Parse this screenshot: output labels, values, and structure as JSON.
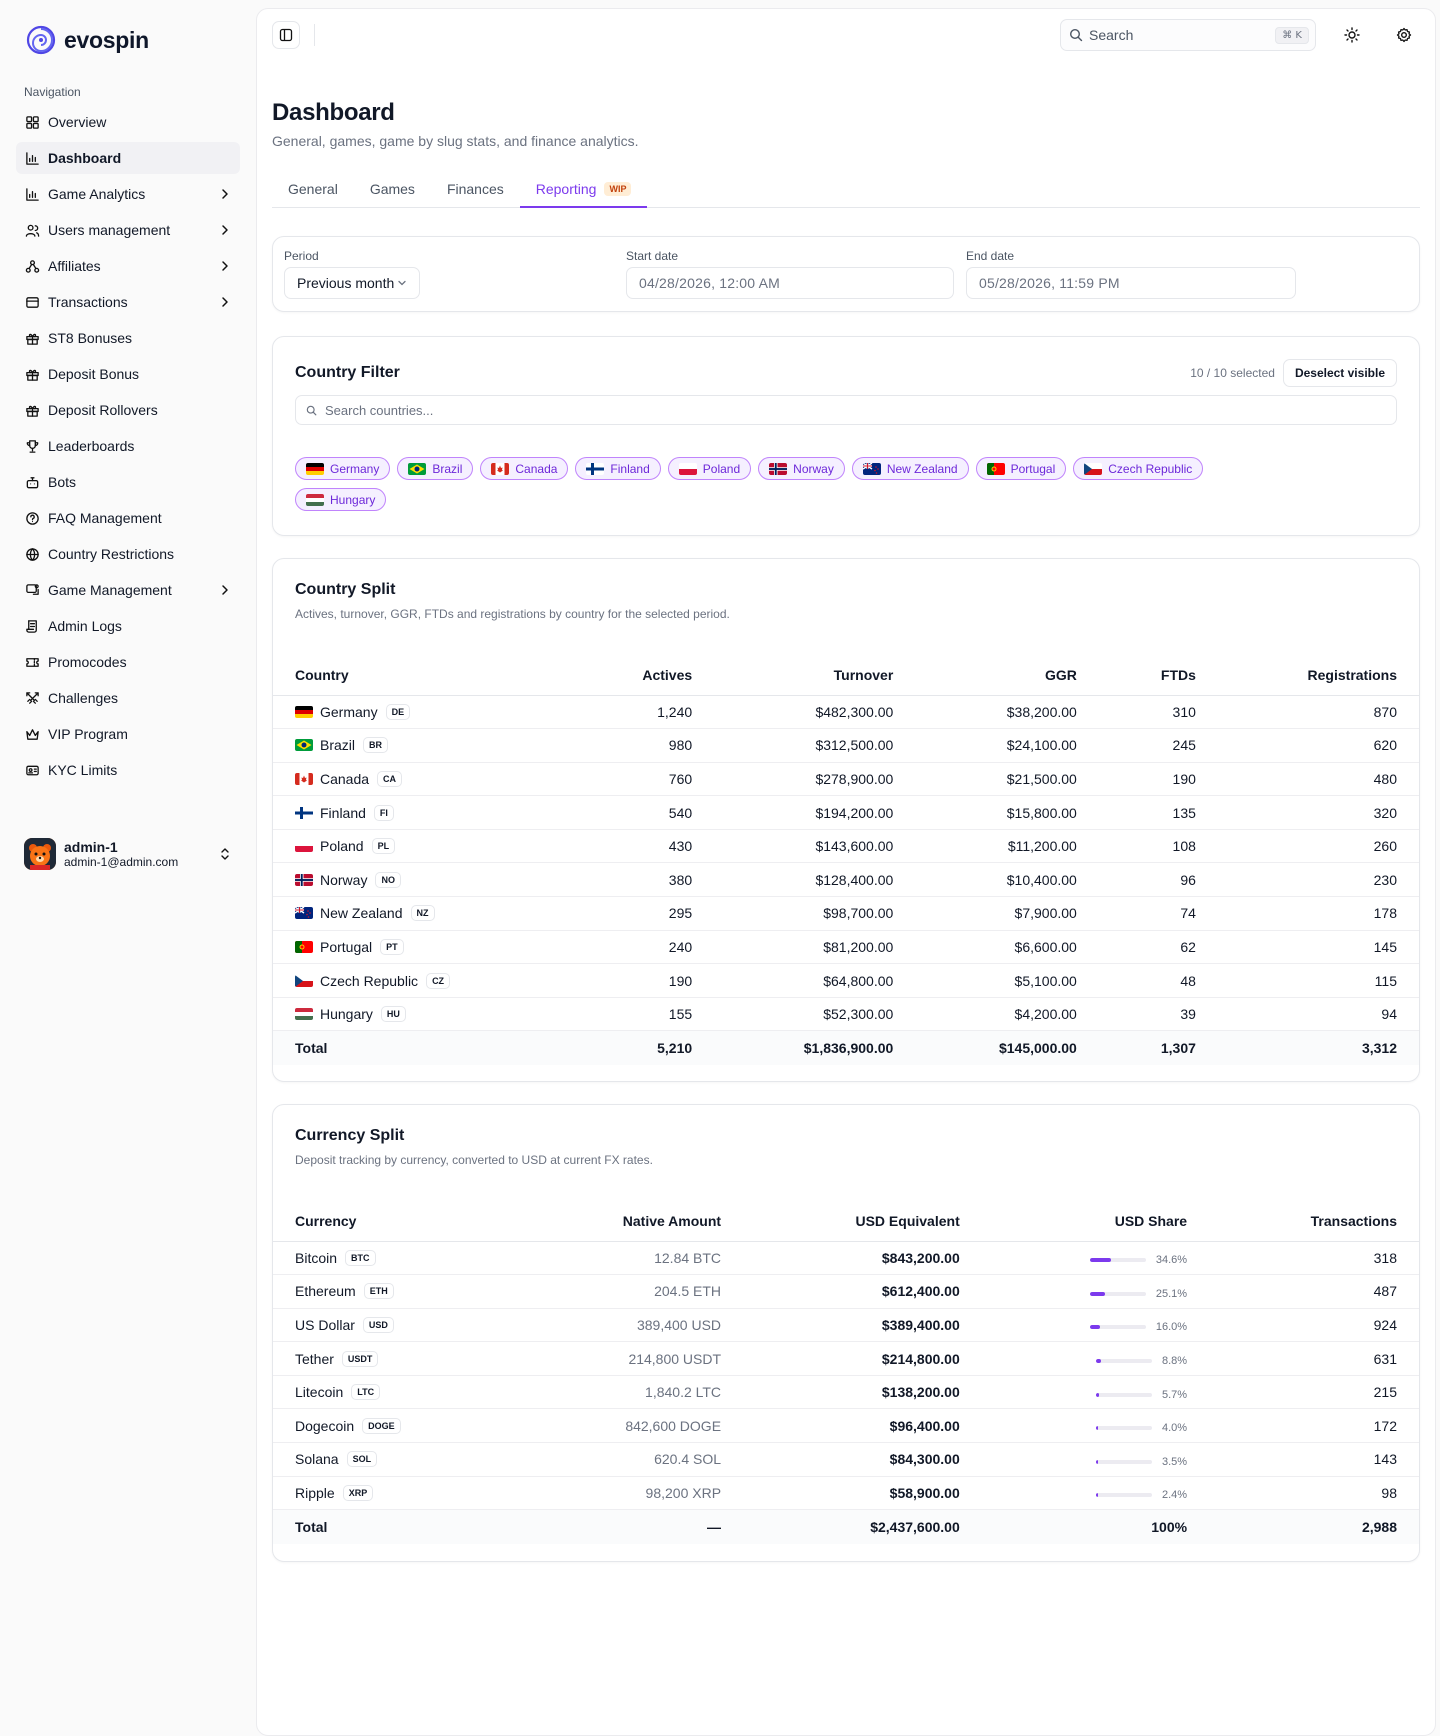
{
  "brand": {
    "name": "evospin"
  },
  "sidebar": {
    "heading": "Navigation",
    "items": [
      {
        "label": "Overview",
        "icon": "grid-icon",
        "chevron": false,
        "active": false
      },
      {
        "label": "Dashboard",
        "icon": "bar-chart-icon",
        "chevron": false,
        "active": true
      },
      {
        "label": "Game Analytics",
        "icon": "bar-chart-icon",
        "chevron": true,
        "active": false
      },
      {
        "label": "Users management",
        "icon": "users-icon",
        "chevron": true,
        "active": false
      },
      {
        "label": "Affiliates",
        "icon": "network-icon",
        "chevron": true,
        "active": false
      },
      {
        "label": "Transactions",
        "icon": "wallet-icon",
        "chevron": true,
        "active": false
      },
      {
        "label": "ST8 Bonuses",
        "icon": "gift-icon",
        "chevron": false,
        "active": false
      },
      {
        "label": "Deposit Bonus",
        "icon": "gift-icon",
        "chevron": false,
        "active": false
      },
      {
        "label": "Deposit Rollovers",
        "icon": "gift-icon",
        "chevron": false,
        "active": false
      },
      {
        "label": "Leaderboards",
        "icon": "trophy-icon",
        "chevron": false,
        "active": false
      },
      {
        "label": "Bots",
        "icon": "bot-icon",
        "chevron": false,
        "active": false
      },
      {
        "label": "FAQ Management",
        "icon": "help-circle-icon",
        "chevron": false,
        "active": false
      },
      {
        "label": "Country Restrictions",
        "icon": "globe-icon",
        "chevron": false,
        "active": false
      },
      {
        "label": "Game Management",
        "icon": "gamepad-icon",
        "chevron": true,
        "active": false
      },
      {
        "label": "Admin Logs",
        "icon": "scroll-icon",
        "chevron": false,
        "active": false
      },
      {
        "label": "Promocodes",
        "icon": "ticket-icon",
        "chevron": false,
        "active": false
      },
      {
        "label": "Challenges",
        "icon": "swords-icon",
        "chevron": false,
        "active": false
      },
      {
        "label": "VIP Program",
        "icon": "crown-icon",
        "chevron": false,
        "active": false
      },
      {
        "label": "KYC Limits",
        "icon": "id-card-icon",
        "chevron": false,
        "active": false
      }
    ],
    "user": {
      "name": "admin-1",
      "email": "admin-1@admin.com"
    }
  },
  "topbar": {
    "search_placeholder": "Search",
    "shortcut": "⌘ K"
  },
  "page": {
    "title": "Dashboard",
    "subtitle": "General, games, game by slug stats, and finance analytics."
  },
  "tabs": [
    {
      "label": "General",
      "active": false
    },
    {
      "label": "Games",
      "active": false
    },
    {
      "label": "Finances",
      "active": false
    },
    {
      "label": "Reporting",
      "active": true,
      "badge": "WIP"
    }
  ],
  "filters": {
    "period_label": "Period",
    "period_value": "Previous month",
    "start_label": "Start date",
    "start_value": "04/28/2026, 12:00 AM",
    "end_label": "End date",
    "end_value": "05/28/2026, 11:59 PM"
  },
  "country_filter": {
    "title": "Country Filter",
    "selected": "10 / 10 selected",
    "deselect": "Deselect visible",
    "search_placeholder": "Search countries...",
    "chips": [
      {
        "name": "Germany",
        "code": "DE"
      },
      {
        "name": "Brazil",
        "code": "BR"
      },
      {
        "name": "Canada",
        "code": "CA"
      },
      {
        "name": "Finland",
        "code": "FI"
      },
      {
        "name": "Poland",
        "code": "PL"
      },
      {
        "name": "Norway",
        "code": "NO"
      },
      {
        "name": "New Zealand",
        "code": "NZ"
      },
      {
        "name": "Portugal",
        "code": "PT"
      },
      {
        "name": "Czech Republic",
        "code": "CZ"
      },
      {
        "name": "Hungary",
        "code": "HU"
      }
    ]
  },
  "country_split": {
    "title": "Country Split",
    "subtitle": "Actives, turnover, GGR, FTDs and registrations by country for the selected period.",
    "columns": [
      "Country",
      "Actives",
      "Turnover",
      "GGR",
      "FTDs",
      "Registrations"
    ],
    "rows": [
      {
        "name": "Germany",
        "code": "DE",
        "actives": "1,240",
        "turnover": "$482,300.00",
        "ggr": "$38,200.00",
        "ftds": "310",
        "regs": "870"
      },
      {
        "name": "Brazil",
        "code": "BR",
        "actives": "980",
        "turnover": "$312,500.00",
        "ggr": "$24,100.00",
        "ftds": "245",
        "regs": "620"
      },
      {
        "name": "Canada",
        "code": "CA",
        "actives": "760",
        "turnover": "$278,900.00",
        "ggr": "$21,500.00",
        "ftds": "190",
        "regs": "480"
      },
      {
        "name": "Finland",
        "code": "FI",
        "actives": "540",
        "turnover": "$194,200.00",
        "ggr": "$15,800.00",
        "ftds": "135",
        "regs": "320"
      },
      {
        "name": "Poland",
        "code": "PL",
        "actives": "430",
        "turnover": "$143,600.00",
        "ggr": "$11,200.00",
        "ftds": "108",
        "regs": "260"
      },
      {
        "name": "Norway",
        "code": "NO",
        "actives": "380",
        "turnover": "$128,400.00",
        "ggr": "$10,400.00",
        "ftds": "96",
        "regs": "230"
      },
      {
        "name": "New Zealand",
        "code": "NZ",
        "actives": "295",
        "turnover": "$98,700.00",
        "ggr": "$7,900.00",
        "ftds": "74",
        "regs": "178"
      },
      {
        "name": "Portugal",
        "code": "PT",
        "actives": "240",
        "turnover": "$81,200.00",
        "ggr": "$6,600.00",
        "ftds": "62",
        "regs": "145"
      },
      {
        "name": "Czech Republic",
        "code": "CZ",
        "actives": "190",
        "turnover": "$64,800.00",
        "ggr": "$5,100.00",
        "ftds": "48",
        "regs": "115"
      },
      {
        "name": "Hungary",
        "code": "HU",
        "actives": "155",
        "turnover": "$52,300.00",
        "ggr": "$4,200.00",
        "ftds": "39",
        "regs": "94"
      }
    ],
    "total": {
      "label": "Total",
      "actives": "5,210",
      "turnover": "$1,836,900.00",
      "ggr": "$145,000.00",
      "ftds": "1,307",
      "regs": "3,312"
    }
  },
  "currency_split": {
    "title": "Currency Split",
    "subtitle": "Deposit tracking by currency, converted to USD at current FX rates.",
    "columns": [
      "Currency",
      "Native Amount",
      "USD Equivalent",
      "USD Share",
      "Transactions"
    ],
    "rows": [
      {
        "name": "Bitcoin",
        "code": "BTC",
        "native": "12.84 BTC",
        "usd": "$843,200.00",
        "share": 34.6,
        "share_label": "34.6%",
        "tx": "318"
      },
      {
        "name": "Ethereum",
        "code": "ETH",
        "native": "204.5 ETH",
        "usd": "$612,400.00",
        "share": 25.1,
        "share_label": "25.1%",
        "tx": "487"
      },
      {
        "name": "US Dollar",
        "code": "USD",
        "native": "389,400 USD",
        "usd": "$389,400.00",
        "share": 16.0,
        "share_label": "16.0%",
        "tx": "924"
      },
      {
        "name": "Tether",
        "code": "USDT",
        "native": "214,800 USDT",
        "usd": "$214,800.00",
        "share": 8.8,
        "share_label": "8.8%",
        "tx": "631"
      },
      {
        "name": "Litecoin",
        "code": "LTC",
        "native": "1,840.2 LTC",
        "usd": "$138,200.00",
        "share": 5.7,
        "share_label": "5.7%",
        "tx": "215"
      },
      {
        "name": "Dogecoin",
        "code": "DOGE",
        "native": "842,600 DOGE",
        "usd": "$96,400.00",
        "share": 4.0,
        "share_label": "4.0%",
        "tx": "172"
      },
      {
        "name": "Solana",
        "code": "SOL",
        "native": "620.4 SOL",
        "usd": "$84,300.00",
        "share": 3.5,
        "share_label": "3.5%",
        "tx": "143"
      },
      {
        "name": "Ripple",
        "code": "XRP",
        "native": "98,200 XRP",
        "usd": "$58,900.00",
        "share": 2.4,
        "share_label": "2.4%",
        "tx": "98"
      }
    ],
    "total": {
      "label": "Total",
      "native": "—",
      "usd": "$2,437,600.00",
      "share": "100%",
      "tx": "2,988"
    }
  },
  "colors": {
    "accent": "#7c3aed",
    "chip_bg": "#f5f0ff",
    "chip_border": "#c084fc",
    "wip_bg": "#ffedd5",
    "wip_text": "#c2410c"
  }
}
